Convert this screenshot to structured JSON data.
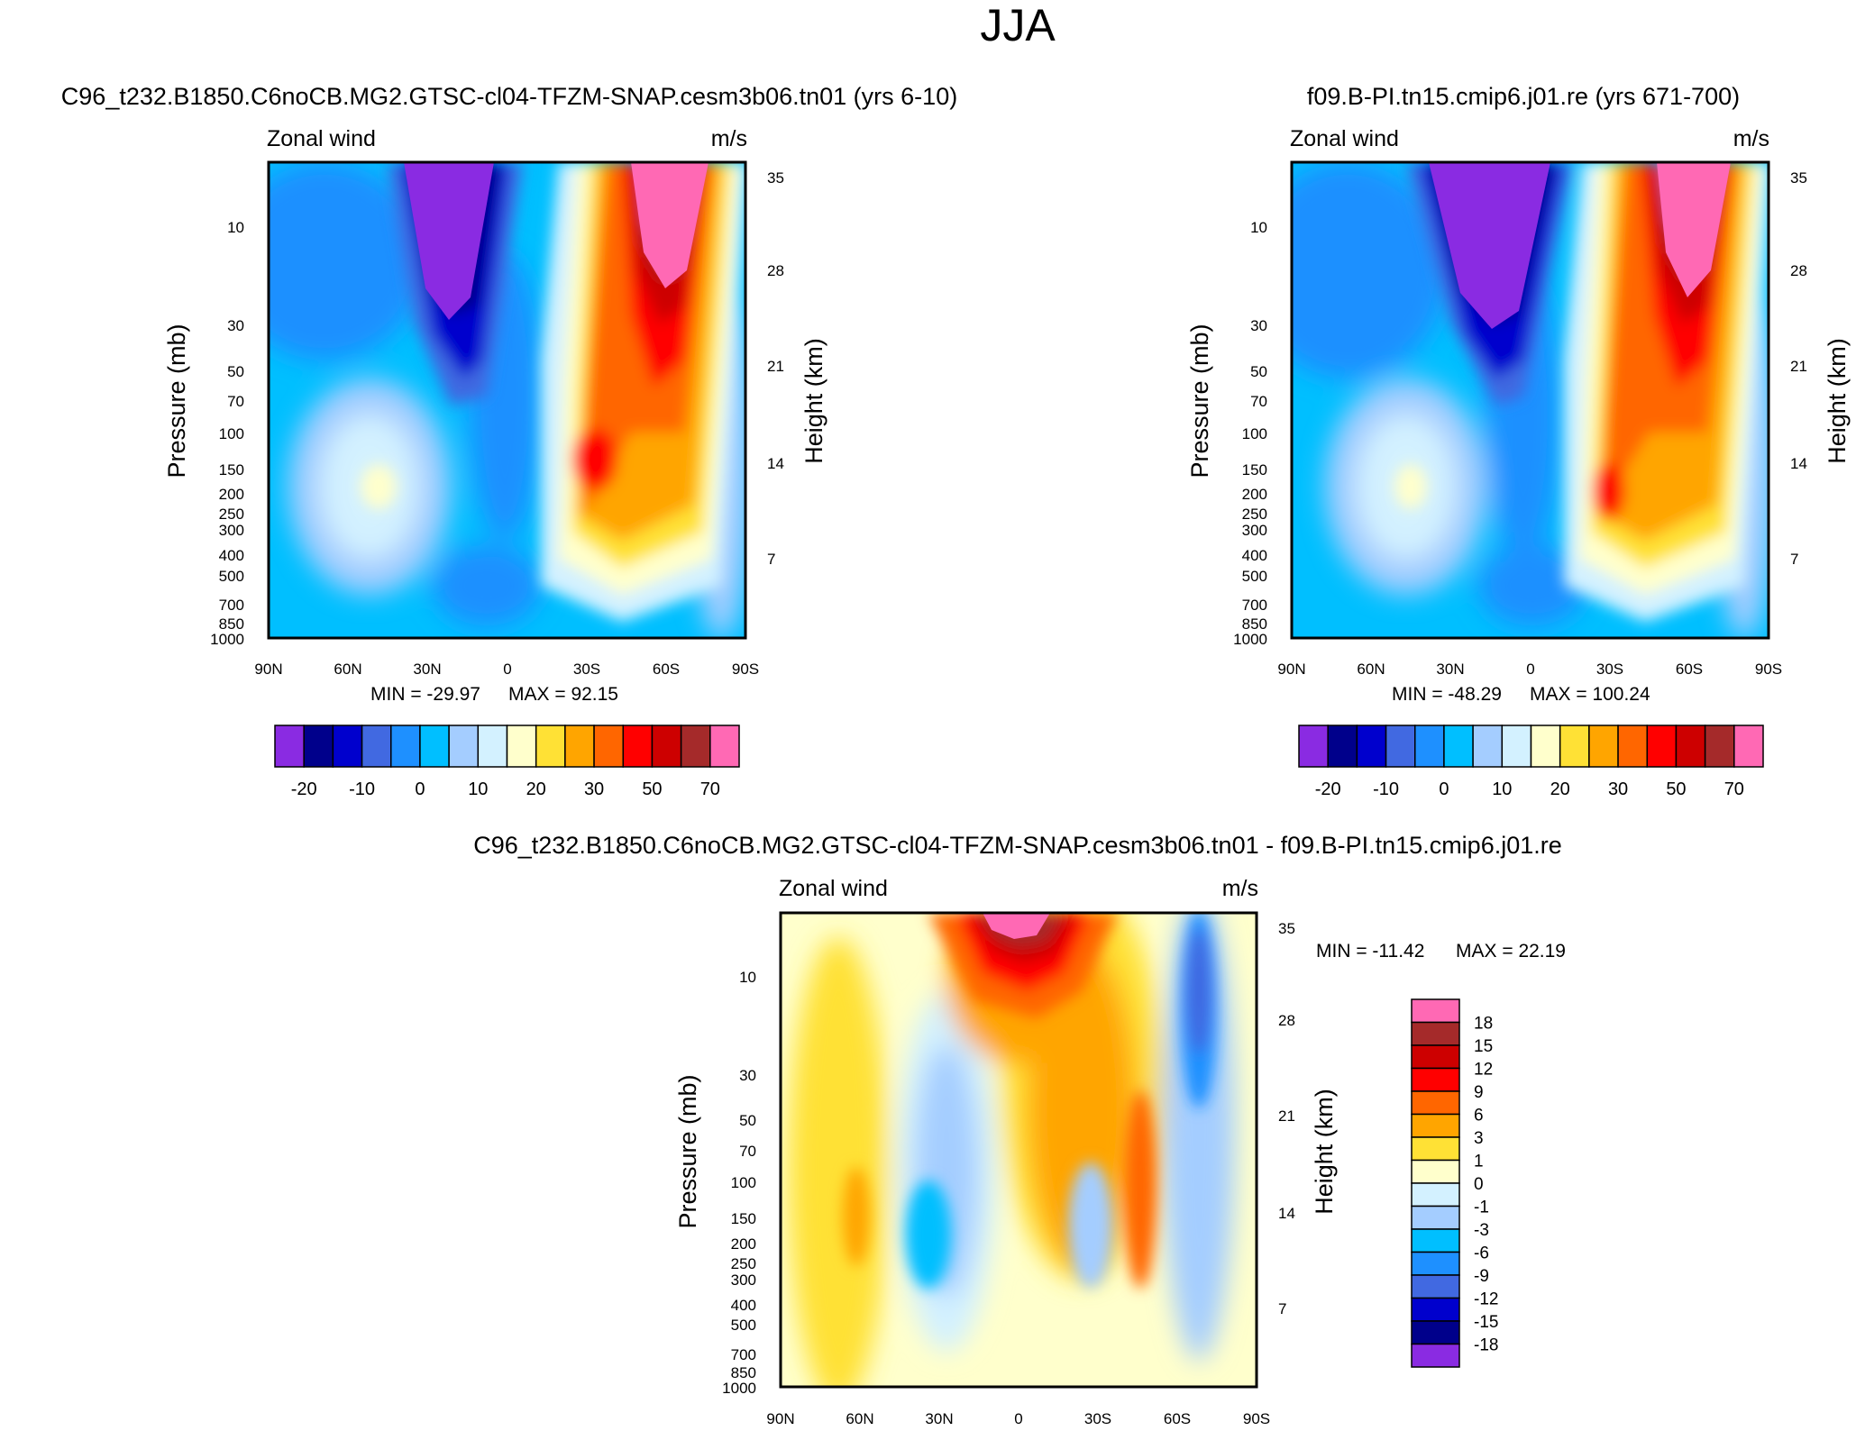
{
  "page_title": "JJA",
  "chart_data": [
    {
      "type": "contour",
      "panel_id": "top-left",
      "title": "C96_t232.B1850.C6noCB.MG2.GTSC-cl04-TFZM-SNAP.cesm3b06.tn01 (yrs 6-10)",
      "subtitle_left": "Zonal wind",
      "subtitle_right": "m/s",
      "ylabel": "Pressure (mb)",
      "ylabel_right": "Height (km)",
      "x_ticks": [
        "90N",
        "60N",
        "30N",
        "0",
        "30S",
        "60S",
        "90S"
      ],
      "y_ticks": [
        "10",
        "30",
        "50",
        "70",
        "100",
        "150",
        "200",
        "250",
        "300",
        "400",
        "500",
        "700",
        "850",
        "1000"
      ],
      "y_right_ticks": [
        "35",
        "28",
        "21",
        "14",
        "7"
      ],
      "min_label": "MIN = -29.97",
      "max_label": "MAX =  92.15",
      "colorbar_labels": [
        "-20",
        "-10",
        "0",
        "10",
        "20",
        "30",
        "50",
        "70"
      ],
      "colorbar_colors": [
        "#8a2be2",
        "#00008b",
        "#0000cd",
        "#4169e1",
        "#1e90ff",
        "#00bfff",
        "#a4cdff",
        "#d3f1ff",
        "#ffffcc",
        "#ffe135",
        "#ffa500",
        "#ff6600",
        "#ff0000",
        "#cd0000",
        "#a52a2a",
        "#ff69b4"
      ],
      "features": {
        "jet_max_lat": 55,
        "jet_max_value": 92.15,
        "polar_vortex_min_lat": -20,
        "polar_vortex_min_value": -29.97
      }
    },
    {
      "type": "contour",
      "panel_id": "top-right",
      "title": "f09.B-PI.tn15.cmip6.j01.re (yrs 671-700)",
      "subtitle_left": "Zonal wind",
      "subtitle_right": "m/s",
      "ylabel": "Pressure (mb)",
      "ylabel_right": "Height (km)",
      "x_ticks": [
        "90N",
        "60N",
        "30N",
        "0",
        "30S",
        "60S",
        "90S"
      ],
      "y_ticks": [
        "10",
        "30",
        "50",
        "70",
        "100",
        "150",
        "200",
        "250",
        "300",
        "400",
        "500",
        "700",
        "850",
        "1000"
      ],
      "y_right_ticks": [
        "35",
        "28",
        "21",
        "14",
        "7"
      ],
      "min_label": "MIN = -48.29",
      "max_label": "MAX = 100.24",
      "colorbar_labels": [
        "-20",
        "-10",
        "0",
        "10",
        "20",
        "30",
        "50",
        "70"
      ],
      "colorbar_colors": [
        "#8a2be2",
        "#00008b",
        "#0000cd",
        "#4169e1",
        "#1e90ff",
        "#00bfff",
        "#a4cdff",
        "#d3f1ff",
        "#ffffcc",
        "#ffe135",
        "#ffa500",
        "#ff6600",
        "#ff0000",
        "#cd0000",
        "#a52a2a",
        "#ff69b4"
      ],
      "features": {
        "jet_max_lat": 55,
        "jet_max_value": 100.24,
        "polar_vortex_min_lat": -20,
        "polar_vortex_min_value": -48.29
      }
    },
    {
      "type": "contour",
      "panel_id": "bottom-diff",
      "title": "C96_t232.B1850.C6noCB.MG2.GTSC-cl04-TFZM-SNAP.cesm3b06.tn01 - f09.B-PI.tn15.cmip6.j01.re",
      "subtitle_left": "Zonal wind",
      "subtitle_right": "m/s",
      "ylabel": "Pressure (mb)",
      "ylabel_right": "Height (km)",
      "x_ticks": [
        "90N",
        "60N",
        "30N",
        "0",
        "30S",
        "60S",
        "90S"
      ],
      "y_ticks": [
        "10",
        "30",
        "50",
        "70",
        "100",
        "150",
        "200",
        "250",
        "300",
        "400",
        "500",
        "700",
        "850",
        "1000"
      ],
      "y_right_ticks": [
        "35",
        "28",
        "21",
        "14",
        "7"
      ],
      "min_label": "MIN = -11.42",
      "max_label": "MAX =  22.19",
      "colorbar_labels": [
        "18",
        "15",
        "12",
        "9",
        "6",
        "3",
        "1",
        "0",
        "-1",
        "-3",
        "-6",
        "-9",
        "-12",
        "-15",
        "-18"
      ],
      "colorbar_colors": [
        "#ff69b4",
        "#a52a2a",
        "#cd0000",
        "#ff0000",
        "#ff6600",
        "#ffa500",
        "#ffe135",
        "#ffffcc",
        "#d3f1ff",
        "#a4cdff",
        "#00bfff",
        "#1e90ff",
        "#4169e1",
        "#0000cd",
        "#00008b",
        "#8a2be2"
      ],
      "features": {
        "max_value": 22.19,
        "min_value": -11.42
      }
    }
  ]
}
